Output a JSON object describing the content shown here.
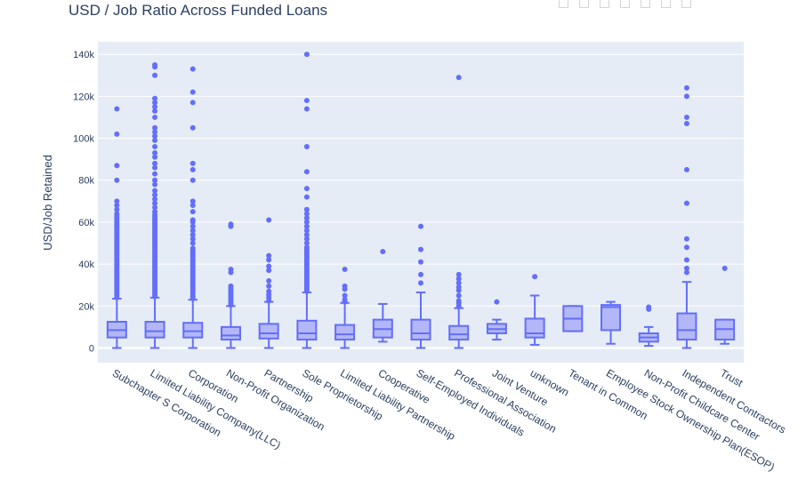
{
  "colors": {
    "plot_bg": "#e5ecf6",
    "box_fill": "#b3b7f7",
    "box_line": "#636efa",
    "text": "#2a3f5f"
  },
  "chart_data": {
    "type": "box",
    "title": "USD / Job Ratio Across Funded Loans",
    "xlabel": "",
    "ylabel": "USD/Job Retained",
    "ylim": [
      -7000,
      146000
    ],
    "yticks": [
      0,
      20000,
      40000,
      60000,
      80000,
      100000,
      120000,
      140000
    ],
    "ytick_labels": [
      "0",
      "20k",
      "40k",
      "60k",
      "80k",
      "100k",
      "120k",
      "140k"
    ],
    "grid": true,
    "legend": "none",
    "categories": [
      "Subchapter S Corporation",
      "Limited  Liability Company(LLC)",
      "Corporation",
      "Non-Profit Organization",
      "Partnership",
      "Sole Proprietorship",
      "Limited Liability Partnership",
      "Cooperative",
      "Self-Employed Individuals",
      "Professional Association",
      "Joint Venture",
      "unknown",
      "Tenant in Common",
      "Employee Stock Ownership Plan(ESOP)",
      "Non-Profit Childcare Center",
      "Independent Contractors",
      "Trust"
    ],
    "boxes": [
      {
        "min": 0,
        "q1": 5000,
        "median": 8500,
        "q3": 12500,
        "max": 23500,
        "outliers": [
          24000,
          25000,
          26000,
          27000,
          28000,
          29000,
          30000,
          31000,
          32000,
          33000,
          34000,
          35000,
          36000,
          37000,
          38000,
          39000,
          40000,
          41000,
          42000,
          43000,
          44000,
          45000,
          46000,
          47000,
          48000,
          49000,
          50000,
          51000,
          52000,
          53000,
          54000,
          55000,
          56000,
          57000,
          58000,
          59000,
          60000,
          61000,
          62000,
          63000,
          64000,
          66000,
          68000,
          70000,
          80000,
          87000,
          102000,
          114000
        ]
      },
      {
        "min": 0,
        "q1": 5000,
        "median": 8000,
        "q3": 12500,
        "max": 24000,
        "outliers": [
          24500,
          25500,
          26500,
          27500,
          28500,
          29500,
          30500,
          31500,
          32500,
          33500,
          34500,
          35500,
          36500,
          37500,
          38500,
          39500,
          40500,
          41500,
          42500,
          43500,
          44500,
          45500,
          46500,
          47500,
          48500,
          49500,
          50500,
          51500,
          52500,
          53500,
          54500,
          55500,
          56500,
          57500,
          58500,
          59500,
          60500,
          61500,
          62500,
          63500,
          65000,
          67000,
          69000,
          71000,
          73000,
          75000,
          78000,
          80000,
          83000,
          86000,
          88000,
          91000,
          93000,
          96000,
          99000,
          101000,
          103000,
          105000,
          110000,
          113000,
          115000,
          117000,
          119000,
          130000,
          134000,
          135000
        ]
      },
      {
        "min": 0,
        "q1": 5000,
        "median": 8000,
        "q3": 12000,
        "max": 23000,
        "outliers": [
          23500,
          24500,
          25500,
          26500,
          27500,
          28500,
          29500,
          30500,
          31500,
          32500,
          33500,
          34500,
          35500,
          36500,
          37500,
          38500,
          39500,
          40500,
          41500,
          42500,
          43500,
          44500,
          45500,
          46500,
          47500,
          50000,
          52000,
          54000,
          56000,
          58000,
          60000,
          61000,
          65000,
          68000,
          70000,
          80000,
          85000,
          88000,
          105000,
          117000,
          122000,
          133000
        ]
      },
      {
        "min": 0,
        "q1": 4000,
        "median": 6000,
        "q3": 10000,
        "max": 20000,
        "outliers": [
          20500,
          21500,
          22500,
          23500,
          24500,
          25500,
          26500,
          27500,
          28500,
          29500,
          36000,
          37500,
          58000,
          59000
        ]
      },
      {
        "min": 0,
        "q1": 4500,
        "median": 7000,
        "q3": 11500,
        "max": 22000,
        "outliers": [
          22500,
          24000,
          25500,
          27000,
          29500,
          32000,
          37000,
          39000,
          42000,
          44000,
          61000
        ]
      },
      {
        "min": 0,
        "q1": 4000,
        "median": 7000,
        "q3": 13000,
        "max": 26500,
        "outliers": [
          27000,
          28000,
          29000,
          30000,
          31000,
          32000,
          33000,
          34000,
          35000,
          36000,
          37000,
          38000,
          39000,
          40000,
          41000,
          42000,
          43000,
          44000,
          45000,
          46000,
          47000,
          48000,
          50000,
          52000,
          54000,
          56000,
          58000,
          60000,
          62000,
          64000,
          66000,
          72000,
          76000,
          84000,
          96000,
          114000,
          118000,
          140000
        ]
      },
      {
        "min": 0,
        "q1": 4000,
        "median": 6500,
        "q3": 11000,
        "max": 21500,
        "outliers": [
          22000,
          23000,
          25000,
          28000,
          29500,
          37500
        ]
      },
      {
        "min": 3000,
        "q1": 5000,
        "median": 9000,
        "q3": 13500,
        "max": 21000,
        "outliers": [
          46000
        ]
      },
      {
        "min": 0,
        "q1": 4000,
        "median": 7000,
        "q3": 13500,
        "max": 26500,
        "outliers": [
          31000,
          35000,
          41000,
          47000,
          58000
        ]
      },
      {
        "min": 0,
        "q1": 4000,
        "median": 6500,
        "q3": 10500,
        "max": 19000,
        "outliers": [
          20000,
          21500,
          22500,
          25000,
          27500,
          29000,
          31000,
          33000,
          35000,
          129000
        ]
      },
      {
        "min": 4000,
        "q1": 7000,
        "median": 9000,
        "q3": 11500,
        "max": 13500,
        "outliers": [
          22000
        ]
      },
      {
        "min": 1500,
        "q1": 5000,
        "median": 7000,
        "q3": 14000,
        "max": 25000,
        "outliers": [
          34000
        ]
      },
      {
        "min": 8000,
        "q1": 8000,
        "median": 14000,
        "q3": 20000,
        "max": 20000,
        "outliers": []
      },
      {
        "min": 2000,
        "q1": 8500,
        "median": 19500,
        "q3": 20500,
        "max": 22000,
        "outliers": []
      },
      {
        "min": 1000,
        "q1": 3000,
        "median": 5000,
        "q3": 7000,
        "max": 10000,
        "outliers": [
          18500,
          19500
        ]
      },
      {
        "min": 0,
        "q1": 4000,
        "median": 8500,
        "q3": 16500,
        "max": 31500,
        "outliers": [
          36000,
          38000,
          42000,
          48000,
          52000,
          69000,
          85000,
          107000,
          110000,
          120000,
          124000
        ]
      },
      {
        "min": 2000,
        "q1": 4000,
        "median": 9000,
        "q3": 13500,
        "max": 13500,
        "outliers": [
          38000
        ]
      }
    ]
  }
}
